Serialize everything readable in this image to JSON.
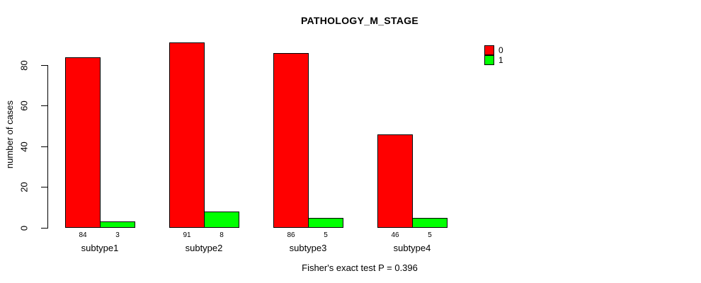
{
  "chart_data": {
    "type": "bar",
    "title": "PATHOLOGY_M_STAGE",
    "categories": [
      "subtype1",
      "subtype2",
      "subtype3",
      "subtype4"
    ],
    "series": [
      {
        "name": "0",
        "color": "#ff0000",
        "values": [
          84,
          91,
          86,
          46
        ]
      },
      {
        "name": "1",
        "color": "#00ff00",
        "values": [
          3,
          8,
          5,
          5
        ]
      }
    ],
    "xlabel": "",
    "ylabel": "number of cases",
    "yticks": [
      0,
      20,
      40,
      60,
      80
    ],
    "ylim": [
      0,
      91
    ],
    "grid": false,
    "bar_borders": true,
    "value_labels_under_bars": true,
    "legend_position": "top-right",
    "annotation": "Fisher's exact test P = 0.396"
  },
  "colors": {
    "background": "#ffffff",
    "text": "#000000",
    "axis": "#000000",
    "series0": "#ff0000",
    "series1": "#00ff00"
  }
}
